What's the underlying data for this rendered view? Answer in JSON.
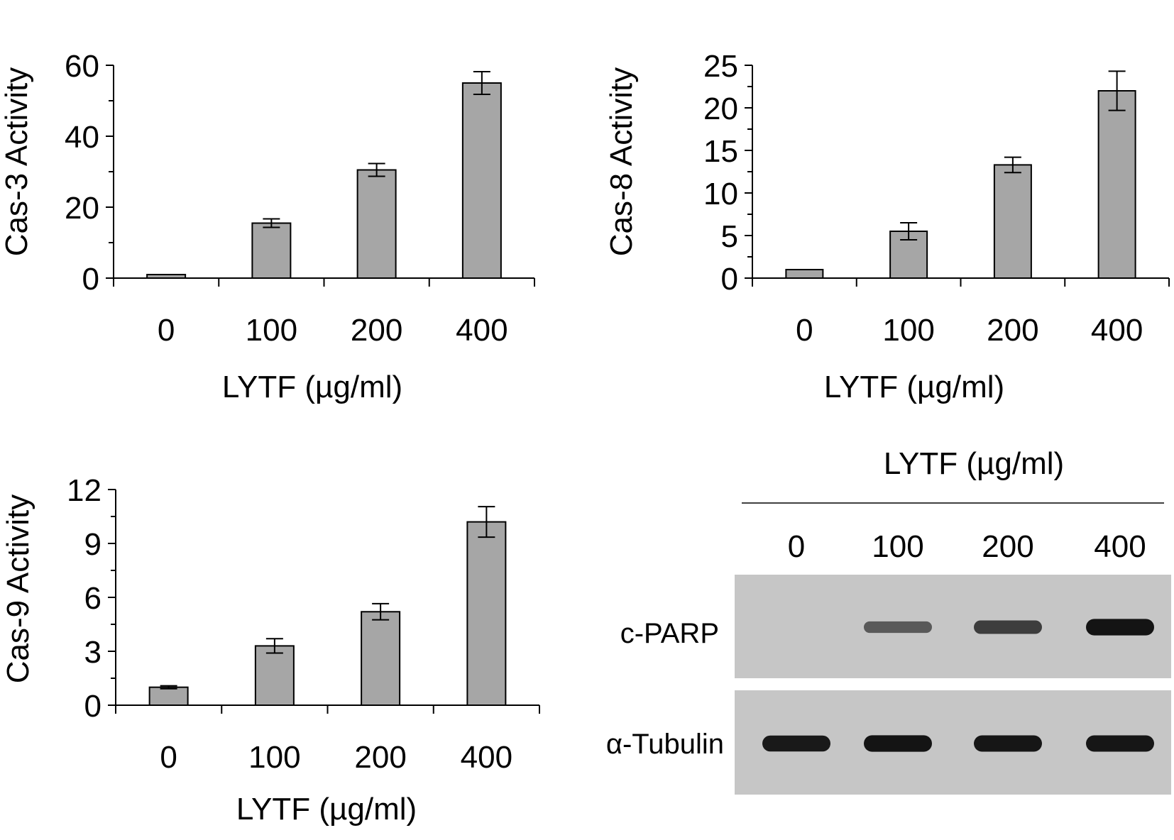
{
  "chart_data": [
    {
      "type": "bar",
      "ylabel": "Cas-3 Activity",
      "xlabel": "LYTF (µg/ml)",
      "categories": [
        "0",
        "100",
        "200",
        "400"
      ],
      "values": [
        1,
        15.5,
        30.5,
        55
      ],
      "errors": [
        0,
        1.2,
        1.8,
        3.2
      ],
      "ylim": [
        0,
        60
      ],
      "yticks": [
        0,
        20,
        40,
        60
      ],
      "grid": false,
      "bar_color": "#a6a6a6"
    },
    {
      "type": "bar",
      "ylabel": "Cas-8 Activity",
      "xlabel": "LYTF (µg/ml)",
      "categories": [
        "0",
        "100",
        "200",
        "400"
      ],
      "values": [
        1,
        5.5,
        13.3,
        22
      ],
      "errors": [
        0,
        1.0,
        0.9,
        2.3
      ],
      "ylim": [
        0,
        25
      ],
      "yticks": [
        0,
        5,
        10,
        15,
        20,
        25
      ],
      "grid": false,
      "bar_color": "#a6a6a6"
    },
    {
      "type": "bar",
      "ylabel": "Cas-9 Activity",
      "xlabel": "LYTF (µg/ml)",
      "categories": [
        "0",
        "100",
        "200",
        "400"
      ],
      "values": [
        1,
        3.3,
        5.2,
        10.2
      ],
      "errors": [
        0.08,
        0.4,
        0.45,
        0.85
      ],
      "ylim": [
        0,
        12
      ],
      "yticks": [
        0,
        3,
        6,
        9,
        12
      ],
      "grid": false,
      "bar_color": "#a6a6a6"
    }
  ],
  "western_blot": {
    "header": "LYTF (µg/ml)",
    "lanes": [
      "0",
      "100",
      "200",
      "400"
    ],
    "rows": [
      {
        "label": "c-PARP",
        "relative_intensity": [
          0,
          0.45,
          0.65,
          0.95
        ]
      },
      {
        "label": "α-Tubulin",
        "relative_intensity": [
          0.9,
          0.95,
          0.93,
          0.93
        ]
      }
    ]
  },
  "colors": {
    "bar_fill": "#a6a6a6",
    "blot_background": "#c6c6c6",
    "band": "#141414"
  }
}
